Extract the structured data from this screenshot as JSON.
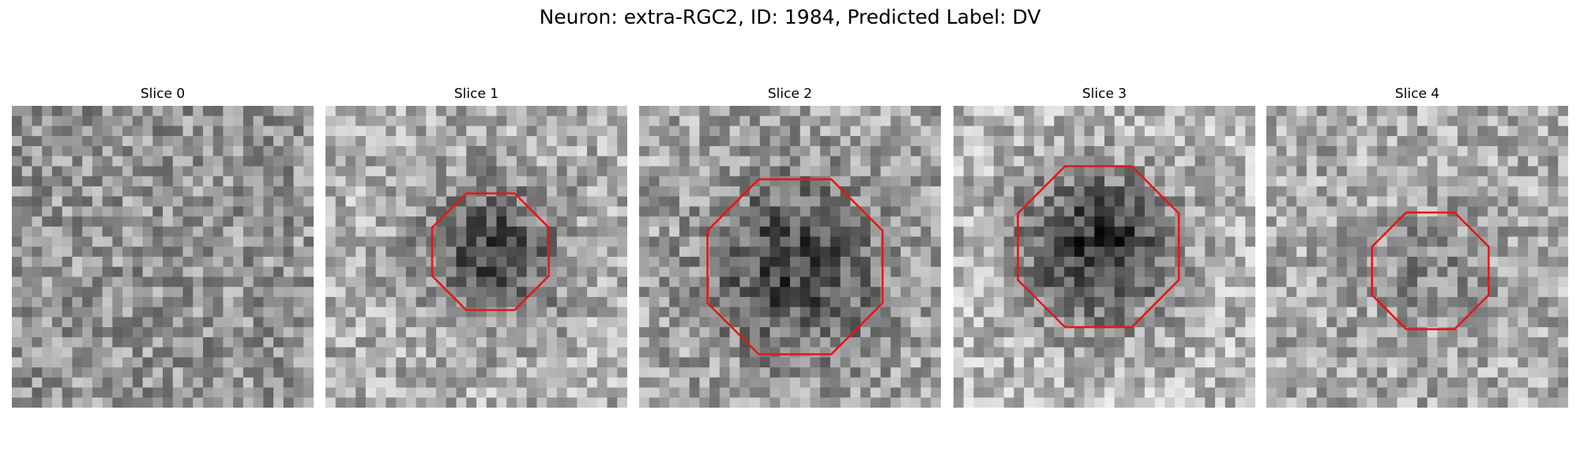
{
  "title": "Neuron: extra-RGC2, ID: 1984, Predicted Label: DV",
  "panels": [
    {
      "title": "Slice 0"
    },
    {
      "title": "Slice 1"
    },
    {
      "title": "Slice 2"
    },
    {
      "title": "Slice 3"
    },
    {
      "title": "Slice 4"
    }
  ]
}
